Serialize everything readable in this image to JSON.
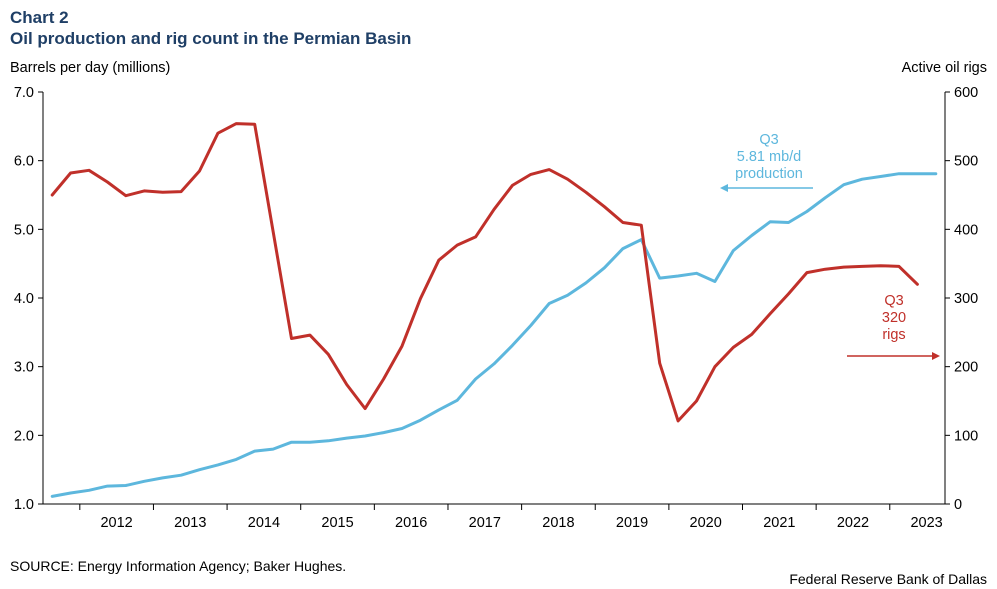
{
  "chart_data": {
    "type": "line",
    "title": "Chart 2",
    "subtitle": "Oil production and rig count in the Permian Basin",
    "ylabel_left": "Barrels per day (millions)",
    "ylabel_right": "Active oil rigs",
    "ylim_left": [
      1.0,
      7.0
    ],
    "ylim_right": [
      0,
      600
    ],
    "yticks_left": [
      "1.0",
      "2.0",
      "3.0",
      "4.0",
      "5.0",
      "6.0",
      "7.0"
    ],
    "yticks_right": [
      "0",
      "100",
      "200",
      "300",
      "400",
      "500",
      "600"
    ],
    "xlim": [
      2011.5,
      2023.75
    ],
    "xticks": [
      "2012",
      "2013",
      "2014",
      "2015",
      "2016",
      "2017",
      "2018",
      "2019",
      "2020",
      "2021",
      "2022",
      "2023"
    ],
    "grid": false,
    "series": [
      {
        "name": "production",
        "axis": "left",
        "color": "#5db7dd",
        "x": [
          2011.625,
          2011.875,
          2012.125,
          2012.375,
          2012.625,
          2012.875,
          2013.125,
          2013.375,
          2013.625,
          2013.875,
          2014.125,
          2014.375,
          2014.625,
          2014.875,
          2015.125,
          2015.375,
          2015.625,
          2015.875,
          2016.125,
          2016.375,
          2016.625,
          2016.875,
          2017.125,
          2017.375,
          2017.625,
          2017.875,
          2018.125,
          2018.375,
          2018.625,
          2018.875,
          2019.125,
          2019.375,
          2019.625,
          2019.875,
          2020.125,
          2020.375,
          2020.625,
          2020.875,
          2021.125,
          2021.375,
          2021.625,
          2021.875,
          2022.125,
          2022.375,
          2022.625,
          2022.875,
          2023.125,
          2023.375,
          2023.625
        ],
        "values": [
          1.11,
          1.16,
          1.2,
          1.26,
          1.27,
          1.33,
          1.38,
          1.42,
          1.5,
          1.57,
          1.65,
          1.77,
          1.8,
          1.9,
          1.9,
          1.92,
          1.96,
          1.99,
          2.04,
          2.1,
          2.22,
          2.37,
          2.51,
          2.82,
          3.04,
          3.31,
          3.6,
          3.92,
          4.04,
          4.22,
          4.44,
          4.72,
          4.85,
          4.29,
          4.32,
          4.36,
          4.24,
          4.69,
          4.91,
          5.11,
          5.1,
          5.26,
          5.46,
          5.65,
          5.73,
          5.77,
          5.81,
          5.81,
          5.81
        ]
      },
      {
        "name": "rigs",
        "axis": "right",
        "color": "#c0302a",
        "x": [
          2011.625,
          2011.875,
          2012.125,
          2012.375,
          2012.625,
          2012.875,
          2013.125,
          2013.375,
          2013.625,
          2013.875,
          2014.125,
          2014.375,
          2014.625,
          2014.875,
          2015.125,
          2015.375,
          2015.625,
          2015.875,
          2016.125,
          2016.375,
          2016.625,
          2016.875,
          2017.125,
          2017.375,
          2017.625,
          2017.875,
          2018.125,
          2018.375,
          2018.625,
          2018.875,
          2019.125,
          2019.375,
          2019.625,
          2019.875,
          2020.125,
          2020.375,
          2020.625,
          2020.875,
          2021.125,
          2021.375,
          2021.625,
          2021.875,
          2022.125,
          2022.375,
          2022.625,
          2022.875,
          2023.125,
          2023.375
        ],
        "values": [
          450,
          482,
          486,
          469,
          449,
          456,
          454,
          455,
          485,
          540,
          554,
          553,
          397,
          241,
          246,
          218,
          174,
          139,
          182,
          230,
          299,
          355,
          377,
          389,
          429,
          464,
          480,
          487,
          473,
          454,
          433,
          410,
          406,
          205,
          121,
          150,
          200,
          228,
          247,
          277,
          306,
          337,
          342,
          345,
          346,
          347,
          346,
          320
        ]
      }
    ],
    "annotations": [
      {
        "lines": [
          "Q3",
          "5.81 mb/d",
          "production"
        ],
        "series": "production"
      },
      {
        "lines": [
          "Q3",
          "320",
          "rigs"
        ],
        "series": "rigs"
      }
    ]
  },
  "footer": {
    "source": "SOURCE: Energy Information Agency; Baker Hughes.",
    "credit": "Federal Reserve Bank of Dallas"
  }
}
